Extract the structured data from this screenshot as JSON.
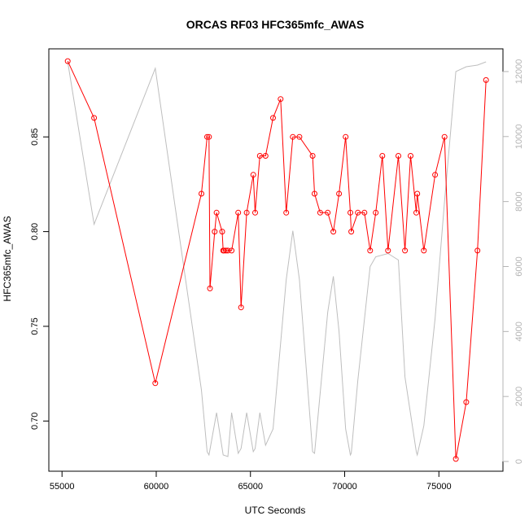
{
  "chart_data": {
    "type": "line",
    "title": "ORCAS RF03 HFC365mfc_AWAS",
    "xlabel": "UTC Seconds",
    "ylabel": "HFC365mfc_AWAS",
    "xlim": [
      54300,
      78400
    ],
    "ylim": [
      0.6735,
      0.8965
    ],
    "y2lim": [
      -300,
      12700
    ],
    "x_ticks": [
      55000,
      60000,
      65000,
      70000,
      75000
    ],
    "x_tick_labels": [
      "55000",
      "60000",
      "65000",
      "70000",
      "75000"
    ],
    "y_ticks": [
      0.7,
      0.75,
      0.8,
      0.85
    ],
    "y_tick_labels": [
      "0.70",
      "0.75",
      "0.80",
      "0.85"
    ],
    "y2_ticks": [
      0,
      2000,
      4000,
      6000,
      8000,
      10000,
      12000
    ],
    "y2_tick_labels": [
      "0",
      "2000",
      "4000",
      "6000",
      "8000",
      "10000",
      "12000"
    ],
    "grid": false,
    "colors": {
      "primary": "#ff0000",
      "secondary": "#bebebe"
    },
    "series": [
      {
        "axis": "left",
        "style": "line+points",
        "color": "#ff0000",
        "x": [
          55300,
          56700,
          59950,
          62400,
          62700,
          62800,
          62850,
          63100,
          63200,
          63500,
          63550,
          63600,
          63700,
          63800,
          64000,
          64350,
          64500,
          64800,
          65150,
          65250,
          65500,
          65800,
          66200,
          66600,
          66900,
          67250,
          67600,
          68300,
          68400,
          68700,
          69100,
          69400,
          69700,
          70050,
          70300,
          70350,
          70700,
          71050,
          71350,
          71650,
          72000,
          72300,
          72850,
          73200,
          73500,
          73800,
          73850,
          74200,
          74800,
          75300,
          75900,
          76450,
          77050,
          77500
        ],
        "y": [
          0.89,
          0.86,
          0.72,
          0.82,
          0.85,
          0.85,
          0.77,
          0.8,
          0.81,
          0.8,
          0.79,
          0.79,
          0.79,
          0.79,
          0.79,
          0.81,
          0.76,
          0.81,
          0.83,
          0.81,
          0.84,
          0.84,
          0.86,
          0.87,
          0.81,
          0.85,
          0.85,
          0.84,
          0.82,
          0.81,
          0.81,
          0.8,
          0.82,
          0.85,
          0.81,
          0.8,
          0.81,
          0.81,
          0.79,
          0.81,
          0.84,
          0.79,
          0.84,
          0.79,
          0.84,
          0.81,
          0.82,
          0.79,
          0.83,
          0.85,
          0.68,
          0.71,
          0.79,
          0.88
        ]
      },
      {
        "axis": "right",
        "style": "line",
        "color": "#bebebe",
        "x": [
          55300,
          56700,
          59950,
          62400,
          62700,
          62800,
          63200,
          63550,
          63800,
          64000,
          64350,
          64500,
          64800,
          65150,
          65250,
          65500,
          65800,
          66200,
          66900,
          67250,
          67600,
          68300,
          68400,
          69100,
          69400,
          69700,
          70050,
          70300,
          70350,
          70700,
          71350,
          71650,
          72300,
          72850,
          73200,
          73800,
          73850,
          74200,
          74800,
          75300,
          75900,
          76450,
          77050,
          77500
        ],
        "y": [
          12300,
          7300,
          12100,
          2200,
          300,
          200,
          1500,
          200,
          150,
          1500,
          250,
          400,
          1500,
          300,
          400,
          1500,
          500,
          1000,
          5600,
          7100,
          5600,
          300,
          250,
          4600,
          5700,
          4000,
          1000,
          200,
          250,
          2500,
          6000,
          6300,
          6400,
          6200,
          2600,
          300,
          200,
          1100,
          4400,
          8000,
          12000,
          12150,
          12200,
          12300
        ]
      }
    ]
  }
}
